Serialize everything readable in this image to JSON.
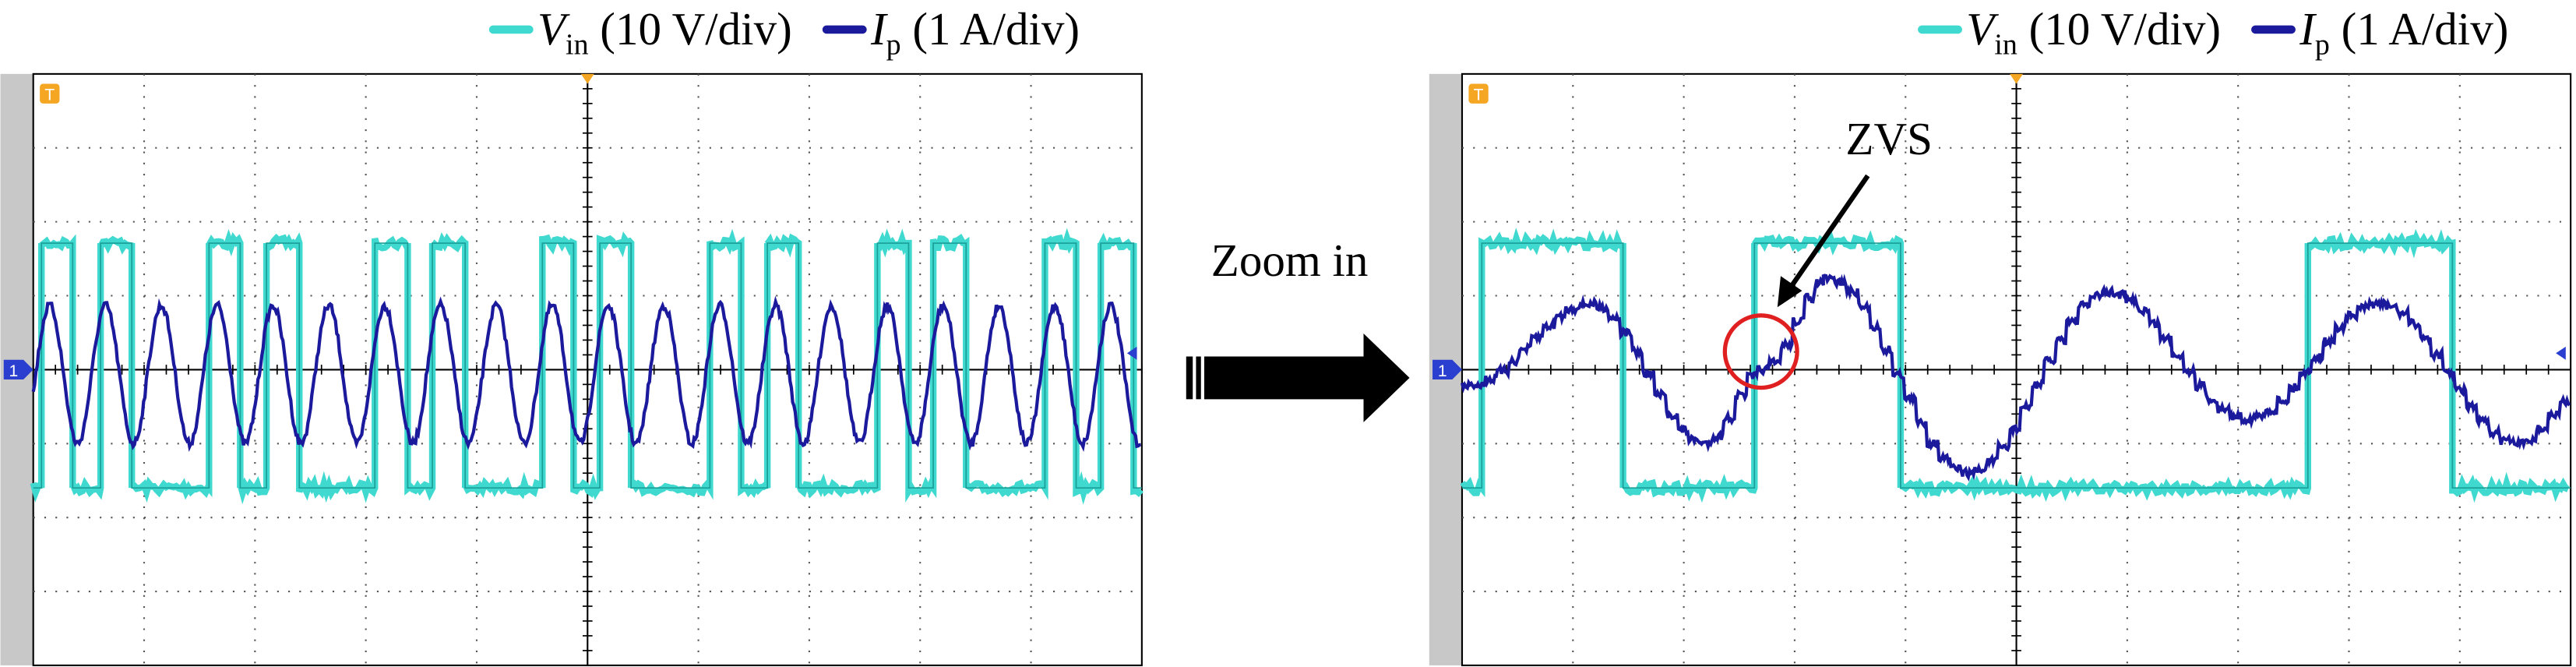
{
  "panels": [
    {
      "legend": [
        {
          "symbol": "V",
          "subscript": "in",
          "scale": "(10 V/div)"
        },
        {
          "symbol": "I",
          "subscript": "p",
          "scale": "(1 A/div)"
        }
      ],
      "trigger_marker": "T",
      "channel_marker": "1"
    },
    {
      "legend": [
        {
          "symbol": "V",
          "subscript": "in",
          "scale": "(10 V/div)"
        },
        {
          "symbol": "I",
          "subscript": "p",
          "scale": "(1 A/div)"
        }
      ],
      "trigger_marker": "T",
      "channel_marker": "1"
    }
  ],
  "annotations": {
    "zoom": "Zoom in",
    "zvs": "ZVS"
  }
}
